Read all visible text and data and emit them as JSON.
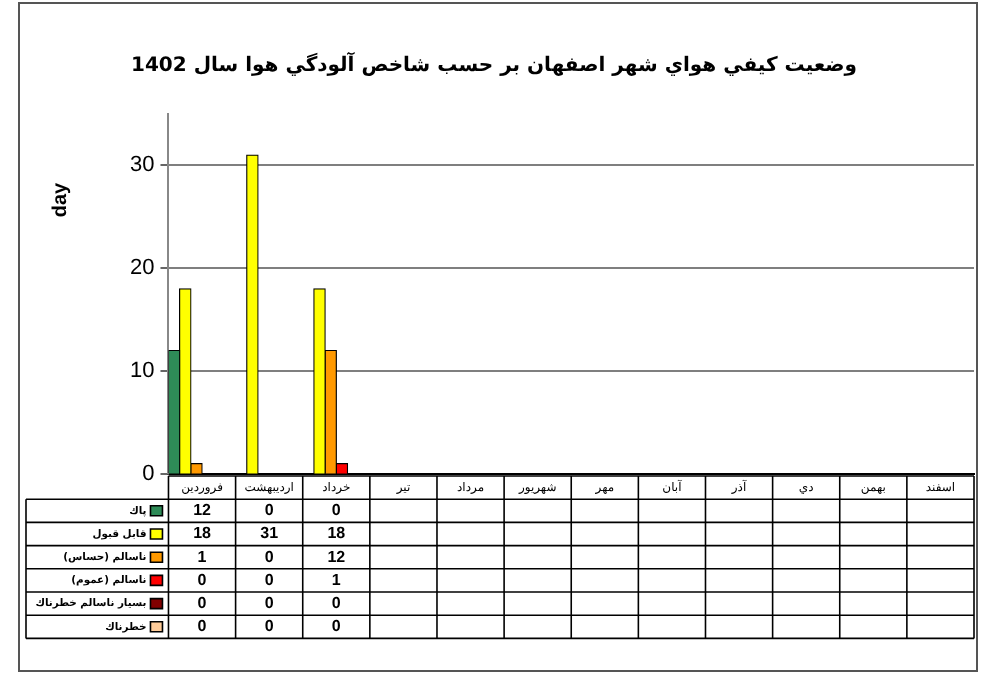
{
  "chart_data": {
    "type": "bar",
    "title": "وضعيت كيفي هواي شهر اصفهان بر حسب شاخص آلودگي هوا سال 1402",
    "ylabel": "day",
    "categories": [
      "فروردين",
      "ارديبهشت",
      "خرداد",
      "تير",
      "مرداد",
      "شهريور",
      "مهر",
      "آبان",
      "آذر",
      "دي",
      "بهمن",
      "اسفند"
    ],
    "series": [
      {
        "name": "پاك",
        "color": "#2e8b57",
        "values": [
          12,
          0,
          0,
          null,
          null,
          null,
          null,
          null,
          null,
          null,
          null,
          null
        ]
      },
      {
        "name": "قابل قبول",
        "color": "#ffff00",
        "values": [
          18,
          31,
          18,
          null,
          null,
          null,
          null,
          null,
          null,
          null,
          null,
          null
        ]
      },
      {
        "name": "ناسالم (حساس)",
        "color": "#ff9900",
        "values": [
          1,
          0,
          12,
          null,
          null,
          null,
          null,
          null,
          null,
          null,
          null,
          null
        ]
      },
      {
        "name": "ناسالم (عموم)",
        "color": "#ff0000",
        "values": [
          0,
          0,
          1,
          null,
          null,
          null,
          null,
          null,
          null,
          null,
          null,
          null
        ]
      },
      {
        "name": "بسيار ناسالم خطرناك",
        "color": "#800000",
        "values": [
          0,
          0,
          0,
          null,
          null,
          null,
          null,
          null,
          null,
          null,
          null,
          null
        ]
      },
      {
        "name": "خطرناك",
        "color": "#ffcc99",
        "values": [
          0,
          0,
          0,
          null,
          null,
          null,
          null,
          null,
          null,
          null,
          null,
          null
        ]
      }
    ],
    "ylim": [
      0,
      35
    ],
    "yticks": [
      0,
      10,
      20,
      30
    ],
    "grid": "y",
    "legend": "bottom",
    "data_labels": true
  }
}
